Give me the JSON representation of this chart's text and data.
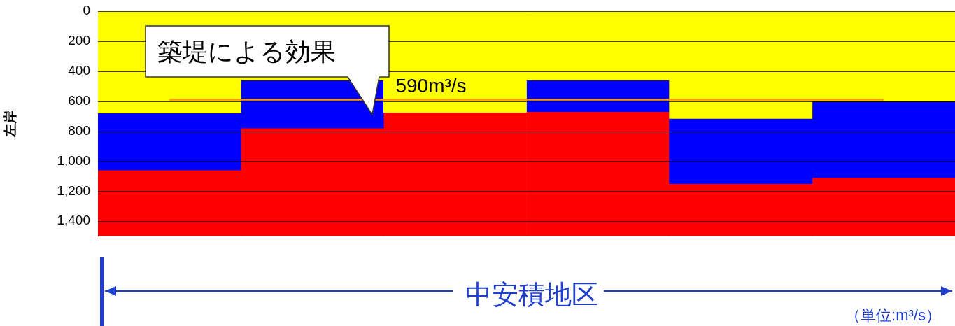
{
  "chart_data": {
    "type": "bar",
    "stacked": true,
    "categories": [
      null,
      null,
      null,
      null,
      null,
      null
    ],
    "series": [
      {
        "color": "#ffff00",
        "values": [
          680,
          460,
          675,
          460,
          715,
          600
        ]
      },
      {
        "color": "#0000ff",
        "values": [
          380,
          320,
          null,
          210,
          435,
          510
        ]
      },
      {
        "color": "#ff0000",
        "values": [
          440,
          720,
          825,
          830,
          350,
          390
        ]
      }
    ],
    "ylabel": "左岸",
    "ylim": [
      1500,
      0
    ],
    "yticks": [
      0,
      200,
      400,
      600,
      800,
      {
        "value": 1000,
        "label": "1,000"
      },
      {
        "value": 1200,
        "label": "1,200"
      },
      {
        "value": 1400,
        "label": "1,400"
      }
    ],
    "grid": "y",
    "legend": false,
    "ref_lines": [
      {
        "axis": "y",
        "value": 590,
        "label": "590m³/s",
        "color": "#ff9900"
      }
    ],
    "annotations": [
      "築堤による効果",
      "中安積地区",
      "（単位:m³/s）"
    ]
  }
}
